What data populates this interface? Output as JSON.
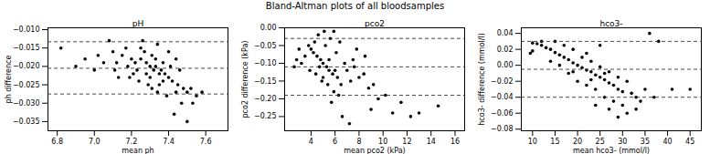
{
  "title": "Bland-Altman plots of all bloodsamples",
  "chart_data": [
    {
      "type": "scatter",
      "title": "pH",
      "x_label": "mean ph",
      "y_label": "ph difference",
      "color": "black",
      "marker": "o",
      "line_style": "dashed",
      "grid": false,
      "hlines": [
        -0.0133,
        -0.0205,
        -0.0275
      ],
      "xlim": [
        6.75,
        7.72
      ],
      "xticks": [
        6.8,
        {
          "value": 7,
          "label": "7.0"
        },
        7.2,
        7.4,
        7.6
      ],
      "ylim": [
        -0.0375,
        -0.0095
      ],
      "yticks": [
        {
          "value": -0.035,
          "label": "−0.035"
        },
        {
          "value": -0.03,
          "label": "−0.030"
        },
        {
          "value": -0.025,
          "label": "−0.025"
        },
        {
          "value": -0.02,
          "label": "−0.020"
        },
        {
          "value": -0.015,
          "label": "−0.015"
        },
        {
          "value": -0.01,
          "label": "−0.010"
        }
      ],
      "x": [
        7.3,
        7.32,
        7.35,
        7.28,
        7.25,
        7.38,
        7.4,
        7.42,
        7.45,
        7.33,
        7.36,
        7.31,
        7.27,
        7.22,
        7.2,
        7.18,
        7.15,
        7.12,
        7.1,
        7.05,
        7.0,
        6.95,
        6.9,
        6.82,
        7.48,
        7.5,
        7.52,
        7.55,
        7.58,
        7.47,
        7.43,
        7.5,
        7.39,
        7.34,
        7.29,
        7.24,
        7.26,
        7.34,
        7.4,
        7.44,
        7.46,
        7.37,
        7.21,
        7.17,
        7.08,
        7.13,
        7.02,
        7.35,
        7.41,
        7.3,
        7.23,
        7.33,
        7.37,
        7.44,
        7.53,
        7.28,
        7.31,
        7.19,
        7.25,
        7.11
      ],
      "values": [
        -0.02,
        -0.021,
        -0.022,
        -0.019,
        -0.018,
        -0.022,
        -0.023,
        -0.024,
        -0.025,
        -0.02,
        -0.021,
        -0.017,
        -0.016,
        -0.019,
        -0.018,
        -0.02,
        -0.017,
        -0.019,
        -0.016,
        -0.019,
        -0.021,
        -0.018,
        -0.02,
        -0.015,
        -0.026,
        -0.027,
        -0.026,
        -0.028,
        -0.027,
        -0.03,
        -0.033,
        -0.035,
        -0.028,
        -0.027,
        -0.025,
        -0.024,
        -0.013,
        -0.014,
        -0.016,
        -0.018,
        -0.021,
        -0.019,
        -0.022,
        -0.015,
        -0.013,
        -0.023,
        -0.017,
        -0.025,
        -0.02,
        -0.023,
        -0.021,
        -0.018,
        -0.024,
        -0.027,
        -0.03,
        -0.022,
        -0.026,
        -0.023,
        -0.015,
        -0.021
      ]
    },
    {
      "type": "scatter",
      "title": "pco2",
      "x_label": "mean pco2 (kPa)",
      "y_label": "pco2 difference (kPa)",
      "color": "black",
      "marker": "o",
      "line_style": "dashed",
      "grid": false,
      "hlines": [
        -0.03,
        -0.11,
        -0.19
      ],
      "xlim": [
        1.8,
        16.8
      ],
      "xticks": [
        4,
        6,
        8,
        10,
        12,
        14,
        16
      ],
      "ylim": [
        -0.29,
        0.0
      ],
      "yticks": [
        {
          "value": -0.25,
          "label": "−0.25"
        },
        {
          "value": -0.2,
          "label": "−0.20"
        },
        {
          "value": -0.15,
          "label": "−0.15"
        },
        {
          "value": -0.1,
          "label": "−0.10"
        },
        {
          "value": -0.05,
          "label": "−0.05"
        },
        {
          "value": 0,
          "label": "0.00"
        }
      ],
      "x": [
        5.0,
        5.3,
        5.5,
        4.8,
        4.5,
        5.8,
        6.0,
        6.2,
        4.2,
        4.0,
        3.8,
        3.5,
        3.2,
        2.8,
        4.6,
        5.1,
        5.6,
        6.4,
        5.4,
        5.9,
        6.3,
        4.9,
        4.4,
        6.8,
        7.0,
        7.3,
        7.6,
        8.0,
        8.4,
        8.8,
        9.2,
        9.6,
        10.2,
        10.8,
        11.5,
        12.3,
        13.0,
        14.6,
        7.8,
        8.5,
        9.0,
        7.2,
        6.6,
        5.7,
        5.2,
        4.7,
        5.0,
        6.1,
        3.9,
        4.3,
        5.5,
        6.5,
        3.0,
        2.6,
        7.5,
        5.9
      ],
      "values": [
        -0.1,
        -0.11,
        -0.12,
        -0.09,
        -0.08,
        -0.13,
        -0.12,
        -0.14,
        -0.07,
        -0.06,
        -0.05,
        -0.08,
        -0.1,
        -0.09,
        -0.02,
        -0.01,
        -0.03,
        -0.04,
        -0.16,
        -0.18,
        -0.19,
        -0.15,
        -0.13,
        -0.1,
        -0.12,
        -0.15,
        -0.11,
        -0.14,
        -0.13,
        -0.17,
        -0.16,
        -0.2,
        -0.19,
        -0.24,
        -0.21,
        -0.25,
        -0.24,
        -0.22,
        -0.06,
        -0.08,
        -0.23,
        -0.27,
        -0.25,
        -0.21,
        -0.05,
        -0.11,
        -0.14,
        -0.07,
        -0.12,
        -0.04,
        -0.09,
        -0.16,
        -0.06,
        -0.11,
        -0.09,
        -0.01
      ]
    },
    {
      "type": "scatter",
      "title": "hco3-",
      "x_label": "mean hco3- (mmol/l)",
      "y_label": "hco3- difference (mmol/l)",
      "color": "black",
      "marker": "o",
      "line_style": "dashed",
      "grid": false,
      "hlines": [
        0.03,
        -0.005,
        -0.04
      ],
      "xlim": [
        7.5,
        47.5
      ],
      "xticks": [
        10,
        15,
        20,
        25,
        30,
        35,
        40,
        45
      ],
      "ylim": [
        -0.082,
        0.047
      ],
      "yticks": [
        {
          "value": -0.08,
          "label": "−0.08"
        },
        {
          "value": -0.06,
          "label": "−0.06"
        },
        {
          "value": -0.04,
          "label": "−0.04"
        },
        {
          "value": -0.02,
          "label": "−0.02"
        },
        {
          "value": 0,
          "label": "0.00"
        },
        0.02,
        0.04
      ],
      "x": [
        20,
        21,
        22,
        23,
        24,
        25,
        26,
        27,
        28,
        29,
        30,
        19,
        18,
        17,
        16,
        15,
        14,
        13,
        12,
        11,
        10,
        9.5,
        21,
        23,
        25,
        27,
        29,
        31,
        32,
        33,
        34,
        30,
        28,
        26,
        24,
        22,
        20,
        18,
        16,
        14,
        17,
        19,
        15,
        22,
        25,
        38,
        36,
        35,
        37,
        41,
        45,
        31,
        33,
        29,
        27,
        24,
        12,
        10,
        26,
        23,
        19
      ],
      "values": [
        0.0,
        -0.003,
        -0.006,
        -0.008,
        -0.012,
        -0.015,
        -0.018,
        -0.022,
        -0.025,
        -0.03,
        -0.033,
        0.003,
        0.007,
        0.01,
        0.013,
        0.016,
        0.02,
        0.022,
        0.025,
        0.027,
        0.028,
        0.015,
        0.01,
        0.005,
        -0.002,
        -0.008,
        -0.015,
        -0.02,
        -0.035,
        -0.04,
        -0.045,
        -0.05,
        -0.045,
        -0.04,
        -0.03,
        -0.025,
        -0.02,
        -0.01,
        0.0,
        0.005,
        0.025,
        0.02,
        0.03,
        0.015,
        0.025,
        0.03,
        0.04,
        -0.03,
        -0.04,
        -0.03,
        -0.03,
        -0.06,
        -0.055,
        -0.065,
        -0.055,
        -0.05,
        0.03,
        0.018,
        -0.01,
        -0.018,
        -0.008
      ]
    }
  ]
}
